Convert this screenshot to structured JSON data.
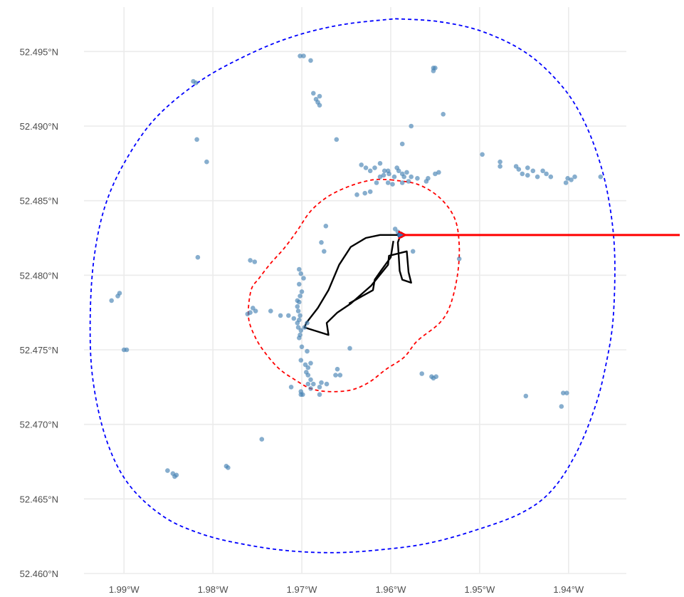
{
  "colors": {
    "points": "#4682b4",
    "outer_boundary": "#0000ff",
    "inner_boundary": "#ff0000",
    "site_outline": "#000000",
    "arrow": "#ff0000"
  },
  "icons": {
    "pointer": "arrow-left-icon"
  },
  "chart_data": {
    "type": "scatter",
    "title": "",
    "xlabel": "",
    "ylabel": "",
    "xlim": [
      -1.9945,
      -1.9335
    ],
    "ylim": [
      52.46,
      52.4975
    ],
    "grid": true,
    "legend": "none",
    "x_ticks": [
      {
        "value": -1.99,
        "label": "1.99°W"
      },
      {
        "value": -1.98,
        "label": "1.98°W"
      },
      {
        "value": -1.97,
        "label": "1.97°W"
      },
      {
        "value": -1.96,
        "label": "1.96°W"
      },
      {
        "value": -1.95,
        "label": "1.95°W"
      },
      {
        "value": -1.94,
        "label": "1.94°W"
      }
    ],
    "y_ticks": [
      {
        "value": 52.46,
        "label": "52.460°N"
      },
      {
        "value": 52.465,
        "label": "52.465°N"
      },
      {
        "value": 52.47,
        "label": "52.470°N"
      },
      {
        "value": 52.475,
        "label": "52.475°N"
      },
      {
        "value": 52.48,
        "label": "52.480°N"
      },
      {
        "value": 52.485,
        "label": "52.485°N"
      },
      {
        "value": 52.49,
        "label": "52.490°N"
      },
      {
        "value": 52.495,
        "label": "52.495°N"
      }
    ],
    "points": [
      [
        -1.9702,
        52.4947
      ],
      [
        -1.9698,
        52.4947
      ],
      [
        -1.969,
        52.4944
      ],
      [
        -1.9552,
        52.4939
      ],
      [
        -1.955,
        52.4939
      ],
      [
        -1.9552,
        52.4937
      ],
      [
        -1.9822,
        52.493
      ],
      [
        -1.9819,
        52.4929
      ],
      [
        -1.9687,
        52.4922
      ],
      [
        -1.9684,
        52.4918
      ],
      [
        -1.968,
        52.492
      ],
      [
        -1.9682,
        52.4916
      ],
      [
        -1.968,
        52.4914
      ],
      [
        -1.9541,
        52.4908
      ],
      [
        -1.9577,
        52.49
      ],
      [
        -1.9587,
        52.4888
      ],
      [
        -1.9818,
        52.4891
      ],
      [
        -1.9661,
        52.4891
      ],
      [
        -1.9807,
        52.4876
      ],
      [
        -1.9497,
        52.4881
      ],
      [
        -1.9477,
        52.4876
      ],
      [
        -1.9477,
        52.4873
      ],
      [
        -1.9459,
        52.4873
      ],
      [
        -1.9456,
        52.4871
      ],
      [
        -1.9452,
        52.4868
      ],
      [
        -1.9446,
        52.4872
      ],
      [
        -1.944,
        52.487
      ],
      [
        -1.9446,
        52.4867
      ],
      [
        -1.9435,
        52.4866
      ],
      [
        -1.9429,
        52.487
      ],
      [
        -1.9425,
        52.4868
      ],
      [
        -1.942,
        52.4866
      ],
      [
        -1.9403,
        52.4862
      ],
      [
        -1.9401,
        52.4865
      ],
      [
        -1.9397,
        52.4864
      ],
      [
        -1.9393,
        52.4866
      ],
      [
        -1.9364,
        52.4866
      ],
      [
        -1.9633,
        52.4874
      ],
      [
        -1.9628,
        52.4872
      ],
      [
        -1.9623,
        52.487
      ],
      [
        -1.9618,
        52.4872
      ],
      [
        -1.9612,
        52.4875
      ],
      [
        -1.9607,
        52.487
      ],
      [
        -1.9602,
        52.4868
      ],
      [
        -1.9596,
        52.4866
      ],
      [
        -1.9591,
        52.487
      ],
      [
        -1.9587,
        52.4868
      ],
      [
        -1.9582,
        52.4869
      ],
      [
        -1.9577,
        52.4866
      ],
      [
        -1.9612,
        52.4866
      ],
      [
        -1.9598,
        52.4861
      ],
      [
        -1.957,
        52.4865
      ],
      [
        -1.956,
        52.4863
      ],
      [
        -1.9558,
        52.4865
      ],
      [
        -1.955,
        52.4868
      ],
      [
        -1.9546,
        52.4869
      ],
      [
        -1.9608,
        52.4867
      ],
      [
        -1.9623,
        52.4856
      ],
      [
        -1.9629,
        52.4855
      ],
      [
        -1.9638,
        52.4854
      ],
      [
        -1.9603,
        52.487
      ],
      [
        -1.9593,
        52.4872
      ],
      [
        -1.9585,
        52.4866
      ],
      [
        -1.9603,
        52.4862
      ],
      [
        -1.958,
        52.4863
      ],
      [
        -1.9616,
        52.4862
      ],
      [
        -1.9587,
        52.4862
      ],
      [
        -1.9673,
        52.4833
      ],
      [
        -1.9595,
        52.4831
      ],
      [
        -1.9592,
        52.4829
      ],
      [
        -1.9589,
        52.4827
      ],
      [
        -1.9678,
        52.4822
      ],
      [
        -1.9675,
        52.4816
      ],
      [
        -1.9575,
        52.4816
      ],
      [
        -1.9523,
        52.4811
      ],
      [
        -1.9817,
        52.4812
      ],
      [
        -1.9758,
        52.481
      ],
      [
        -1.9753,
        52.4809
      ],
      [
        -1.9703,
        52.4804
      ],
      [
        -1.9701,
        52.4801
      ],
      [
        -1.9698,
        52.4798
      ],
      [
        -1.9703,
        52.4794
      ],
      [
        -1.97,
        52.4789
      ],
      [
        -1.9702,
        52.4786
      ],
      [
        -1.9705,
        52.4783
      ],
      [
        -1.9703,
        52.4782
      ],
      [
        -1.9705,
        52.4779
      ],
      [
        -1.9704,
        52.4776
      ],
      [
        -1.9702,
        52.4773
      ],
      [
        -1.9703,
        52.477
      ],
      [
        -1.9705,
        52.4768
      ],
      [
        -1.9704,
        52.4765
      ],
      [
        -1.9701,
        52.4763
      ],
      [
        -1.9702,
        52.476
      ],
      [
        -1.9703,
        52.4758
      ],
      [
        -1.9905,
        52.4788
      ],
      [
        -1.9907,
        52.4786
      ],
      [
        -1.9914,
        52.4783
      ],
      [
        -1.9755,
        52.4778
      ],
      [
        -1.9758,
        52.4775
      ],
      [
        -1.9761,
        52.4774
      ],
      [
        -1.9752,
        52.4776
      ],
      [
        -1.9735,
        52.4776
      ],
      [
        -1.9724,
        52.4773
      ],
      [
        -1.9715,
        52.4773
      ],
      [
        -1.9709,
        52.4771
      ],
      [
        -1.9694,
        52.4768
      ],
      [
        -1.9697,
        52.4765
      ],
      [
        -1.97,
        52.4752
      ],
      [
        -1.9897,
        52.475
      ],
      [
        -1.99,
        52.475
      ],
      [
        -1.9646,
        52.4751
      ],
      [
        -1.9694,
        52.4749
      ],
      [
        -1.9701,
        52.4743
      ],
      [
        -1.9696,
        52.474
      ],
      [
        -1.9693,
        52.4738
      ],
      [
        -1.969,
        52.4741
      ],
      [
        -1.9695,
        52.4735
      ],
      [
        -1.9693,
        52.4733
      ],
      [
        -1.969,
        52.473
      ],
      [
        -1.9693,
        52.4727
      ],
      [
        -1.969,
        52.4724
      ],
      [
        -1.9687,
        52.4727
      ],
      [
        -1.968,
        52.4725
      ],
      [
        -1.9678,
        52.4728
      ],
      [
        -1.9672,
        52.4727
      ],
      [
        -1.9662,
        52.4733
      ],
      [
        -1.966,
        52.4737
      ],
      [
        -1.9657,
        52.4733
      ],
      [
        -1.9701,
        52.4722
      ],
      [
        -1.9701,
        52.472
      ],
      [
        -1.9699,
        52.472
      ],
      [
        -1.9712,
        52.4725
      ],
      [
        -1.968,
        52.472
      ],
      [
        -1.9565,
        52.4734
      ],
      [
        -1.9554,
        52.4732
      ],
      [
        -1.9552,
        52.4731
      ],
      [
        -1.9549,
        52.4732
      ],
      [
        -1.9448,
        52.4719
      ],
      [
        -1.9406,
        52.4721
      ],
      [
        -1.9402,
        52.4721
      ],
      [
        -1.9408,
        52.4712
      ],
      [
        -1.9745,
        52.469
      ],
      [
        -1.9851,
        52.4669
      ],
      [
        -1.9845,
        52.4667
      ],
      [
        -1.9843,
        52.4665
      ],
      [
        -1.9841,
        52.4666
      ],
      [
        -1.9785,
        52.4672
      ],
      [
        -1.9783,
        52.4671
      ]
    ],
    "highlight_point": [
      -1.9589,
      52.4827
    ],
    "outer_boundary": [
      [
        -1.9595,
        52.4972
      ],
      [
        -1.9545,
        52.497
      ],
      [
        -1.9495,
        52.4963
      ],
      [
        -1.9445,
        52.4948
      ],
      [
        -1.9405,
        52.4925
      ],
      [
        -1.938,
        52.49
      ],
      [
        -1.9362,
        52.487
      ],
      [
        -1.9352,
        52.484
      ],
      [
        -1.9348,
        52.481
      ],
      [
        -1.935,
        52.477
      ],
      [
        -1.9358,
        52.474
      ],
      [
        -1.937,
        52.4712
      ],
      [
        -1.9392,
        52.468
      ],
      [
        -1.942,
        52.4655
      ],
      [
        -1.9455,
        52.464
      ],
      [
        -1.951,
        52.4628
      ],
      [
        -1.956,
        52.462
      ],
      [
        -1.961,
        52.4616
      ],
      [
        -1.966,
        52.4614
      ],
      [
        -1.971,
        52.4615
      ],
      [
        -1.976,
        52.4619
      ],
      [
        -1.981,
        52.4626
      ],
      [
        -1.9855,
        52.4638
      ],
      [
        -1.9895,
        52.466
      ],
      [
        -1.992,
        52.469
      ],
      [
        -1.9935,
        52.473
      ],
      [
        -1.9938,
        52.477
      ],
      [
        -1.9934,
        52.481
      ],
      [
        -1.9922,
        52.4845
      ],
      [
        -1.99,
        52.4875
      ],
      [
        -1.9865,
        52.4905
      ],
      [
        -1.9815,
        52.493
      ],
      [
        -1.976,
        52.4948
      ],
      [
        -1.971,
        52.496
      ],
      [
        -1.9655,
        52.4968
      ],
      [
        -1.9595,
        52.4972
      ]
    ],
    "inner_boundary": [
      [
        -1.96,
        52.4864
      ],
      [
        -1.957,
        52.4861
      ],
      [
        -1.9545,
        52.4852
      ],
      [
        -1.9528,
        52.4838
      ],
      [
        -1.9523,
        52.482
      ],
      [
        -1.9525,
        52.48
      ],
      [
        -1.9533,
        52.478
      ],
      [
        -1.9545,
        52.4768
      ],
      [
        -1.957,
        52.4756
      ],
      [
        -1.9585,
        52.4745
      ],
      [
        -1.9605,
        52.4737
      ],
      [
        -1.9625,
        52.4728
      ],
      [
        -1.9645,
        52.4723
      ],
      [
        -1.967,
        52.4722
      ],
      [
        -1.969,
        52.4724
      ],
      [
        -1.9708,
        52.473
      ],
      [
        -1.9725,
        52.4737
      ],
      [
        -1.974,
        52.4747
      ],
      [
        -1.9752,
        52.4758
      ],
      [
        -1.976,
        52.4772
      ],
      [
        -1.9757,
        52.479
      ],
      [
        -1.9748,
        52.4798
      ],
      [
        -1.9735,
        52.4808
      ],
      [
        -1.972,
        52.4818
      ],
      [
        -1.9705,
        52.483
      ],
      [
        -1.969,
        52.4843
      ],
      [
        -1.967,
        52.4853
      ],
      [
        -1.9645,
        52.486
      ],
      [
        -1.962,
        52.4864
      ],
      [
        -1.96,
        52.4864
      ]
    ],
    "site_outline": [
      [
        -1.9589,
        52.4827
      ],
      [
        -1.9612,
        52.4827
      ],
      [
        -1.9628,
        52.4825
      ],
      [
        -1.9645,
        52.4819
      ],
      [
        -1.9658,
        52.4807
      ],
      [
        -1.967,
        52.479
      ],
      [
        -1.9682,
        52.4778
      ],
      [
        -1.9695,
        52.4768
      ],
      [
        -1.9697,
        52.4765
      ],
      [
        -1.967,
        52.476
      ],
      [
        -1.9672,
        52.4768
      ],
      [
        -1.966,
        52.4775
      ],
      [
        -1.9645,
        52.4781
      ],
      [
        -1.9622,
        52.4793
      ],
      [
        -1.9603,
        52.4807
      ],
      [
        -1.9602,
        52.4813
      ],
      [
        -1.9582,
        52.4816
      ],
      [
        -1.958,
        52.4802
      ],
      [
        -1.9577,
        52.4795
      ],
      [
        -1.9587,
        52.4797
      ],
      [
        -1.959,
        52.4803
      ],
      [
        -1.9592,
        52.4822
      ],
      [
        -1.9589,
        52.4827
      ]
    ],
    "site_notch": [
      [
        -1.9597,
        52.4823
      ],
      [
        -1.96,
        52.4812
      ],
      [
        -1.9611,
        52.4803
      ],
      [
        -1.9618,
        52.4797
      ],
      [
        -1.962,
        52.479
      ],
      [
        -1.9632,
        52.4786
      ],
      [
        -1.9647,
        52.4781
      ]
    ]
  }
}
